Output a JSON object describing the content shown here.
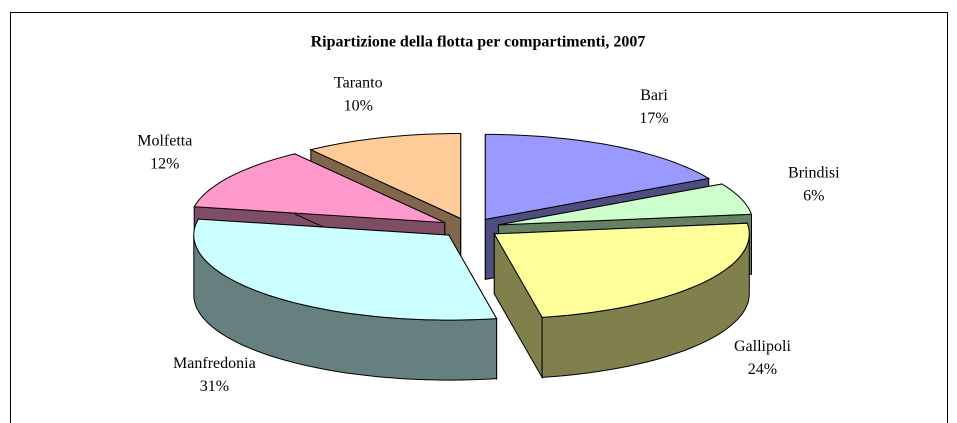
{
  "chart_data": {
    "type": "pie3d",
    "title": "Ripartizione della flotta per compartimenti, 2007",
    "categories": [
      "Bari",
      "Brindisi",
      "Gallipoli",
      "Manfredonia",
      "Molfetta",
      "Taranto"
    ],
    "values": [
      17,
      6,
      24,
      31,
      12,
      10
    ],
    "value_labels": [
      "17%",
      "6%",
      "24%",
      "31%",
      "12%",
      "10%"
    ],
    "colors": [
      "#9999ff",
      "#ccffcc",
      "#ffff99",
      "#ccffff",
      "#ff99cc",
      "#ffcc99"
    ]
  }
}
